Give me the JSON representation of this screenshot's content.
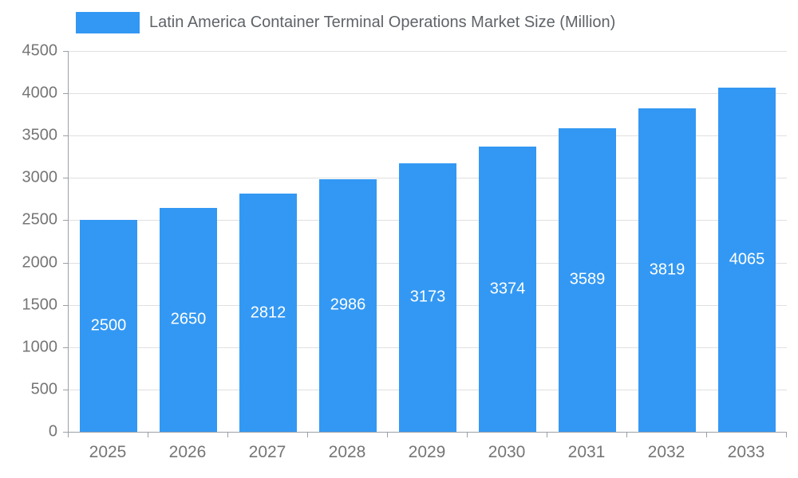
{
  "chart_data": {
    "type": "bar",
    "title": "Latin America Container Terminal Operations Market Size (Million)",
    "categories": [
      "2025",
      "2026",
      "2027",
      "2028",
      "2029",
      "2030",
      "2031",
      "2032",
      "2033"
    ],
    "values": [
      2500,
      2650,
      2812,
      2986,
      3173,
      3374,
      3589,
      3819,
      4065
    ],
    "xlabel": "",
    "ylabel": "",
    "ylim": [
      0,
      4500
    ],
    "ytick_step": 500,
    "grid": true,
    "legend_position": "top-left",
    "bar_color": "#3398f3",
    "value_label_color": "#ffffff"
  },
  "colors": {
    "axis_line": "#9aa0a6",
    "gridline": "#e0e0e0",
    "tick_label": "#757575",
    "legend_text": "#5f6368",
    "background": "#ffffff"
  }
}
